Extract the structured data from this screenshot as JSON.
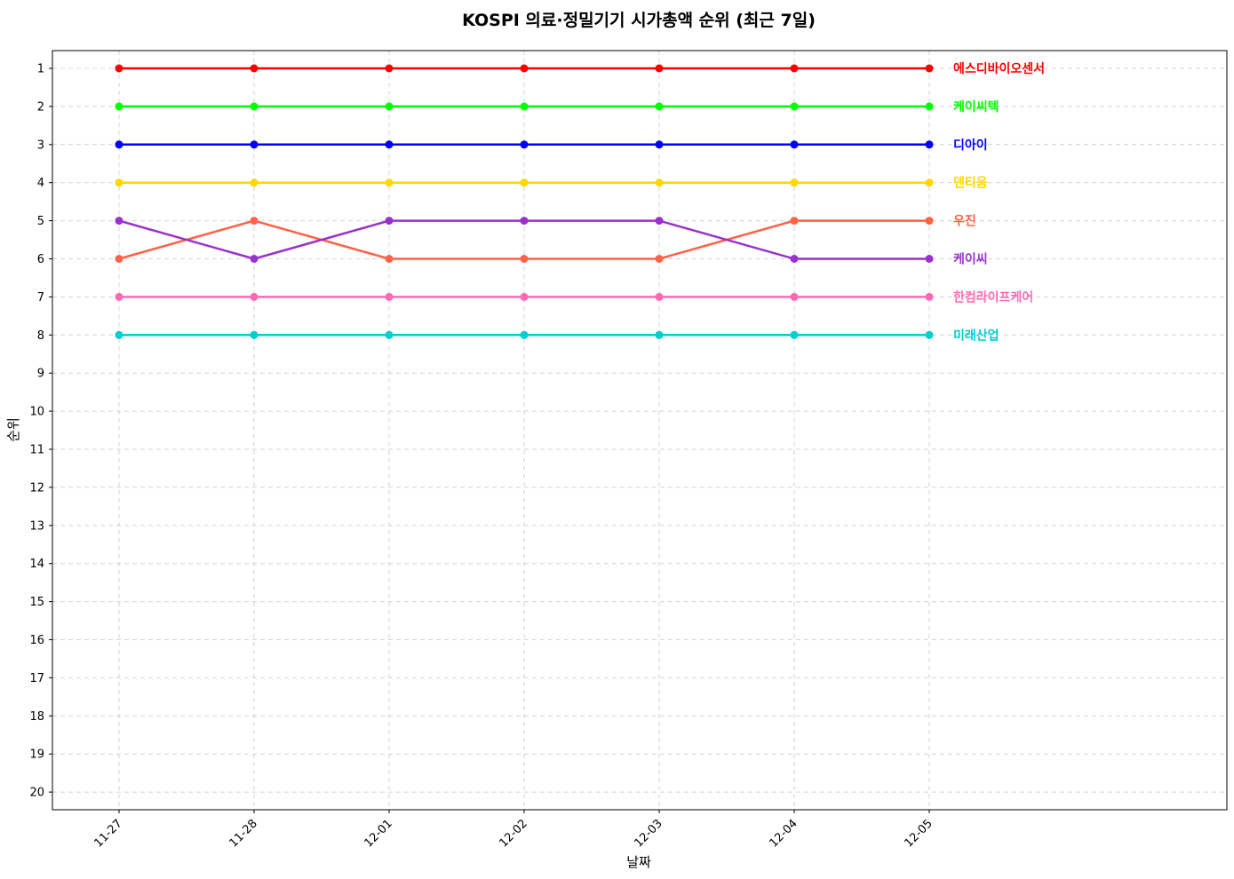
{
  "chart_data": {
    "type": "line",
    "title": "KOSPI 의료·정밀기기 시가총액 순위 (최근 7일)",
    "xlabel": "날짜",
    "ylabel": "순위",
    "categories": [
      "11-27",
      "11-28",
      "12-01",
      "12-02",
      "12-03",
      "12-04",
      "12-05"
    ],
    "yticks": [
      "1",
      "2",
      "3",
      "4",
      "5",
      "6",
      "7",
      "8",
      "9",
      "10",
      "11",
      "12",
      "13",
      "14",
      "15",
      "16",
      "17",
      "18",
      "19",
      "20"
    ],
    "ylim": [
      20,
      1
    ],
    "y_inverted": true,
    "grid": true,
    "series": [
      {
        "name": "에스디바이오센서",
        "color": "#ff0000",
        "values": [
          1,
          1,
          1,
          1,
          1,
          1,
          1
        ]
      },
      {
        "name": "케이씨텍",
        "color": "#00ff00",
        "values": [
          2,
          2,
          2,
          2,
          2,
          2,
          2
        ]
      },
      {
        "name": "디아이",
        "color": "#0000ff",
        "values": [
          3,
          3,
          3,
          3,
          3,
          3,
          3
        ]
      },
      {
        "name": "덴티움",
        "color": "#ffd700",
        "values": [
          4,
          4,
          4,
          4,
          4,
          4,
          4
        ]
      },
      {
        "name": "우진",
        "color": "#ff6347",
        "values": [
          6,
          5,
          6,
          6,
          6,
          5,
          5
        ]
      },
      {
        "name": "케이씨",
        "color": "#9932cc",
        "values": [
          5,
          6,
          5,
          5,
          5,
          6,
          6
        ]
      },
      {
        "name": "한컴라이프케어",
        "color": "#ff69b4",
        "values": [
          7,
          7,
          7,
          7,
          7,
          7,
          7
        ]
      },
      {
        "name": "미래산업",
        "color": "#00ced1",
        "values": [
          8,
          8,
          8,
          8,
          8,
          8,
          8
        ]
      }
    ]
  }
}
